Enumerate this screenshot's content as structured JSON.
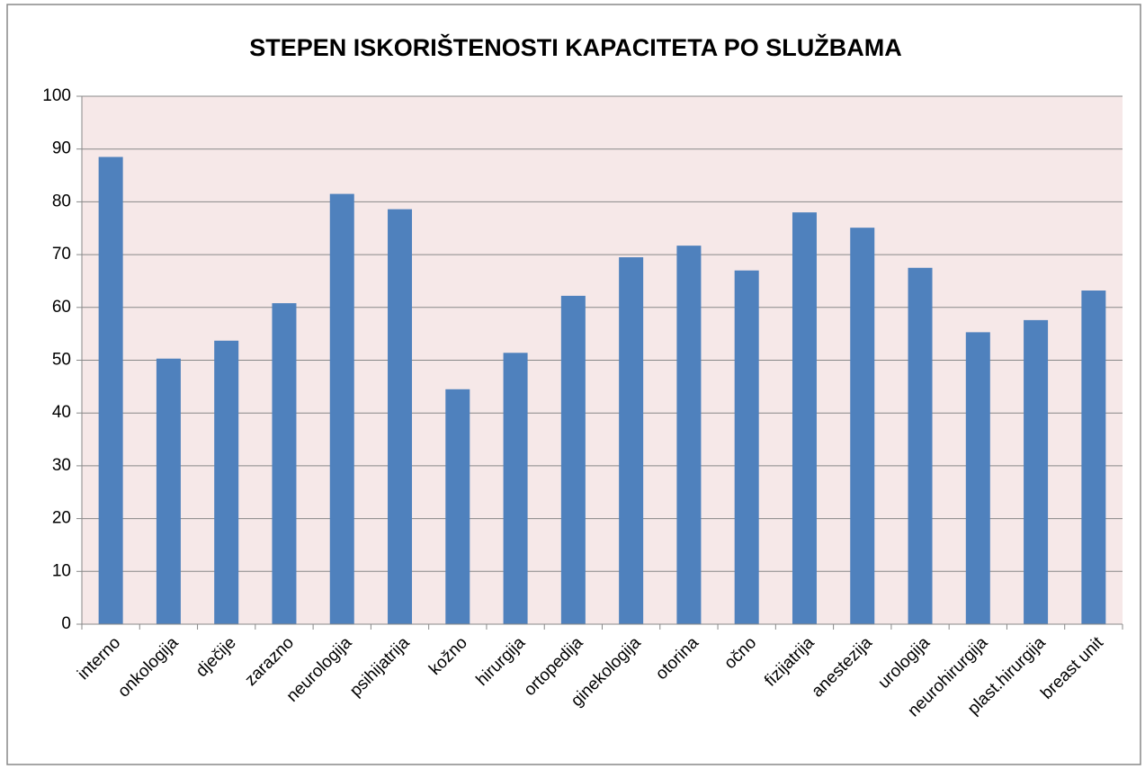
{
  "chart_data": {
    "type": "bar",
    "title": "STEPEN ISKORIŠTENOSTI KAPACITETA PO SLUŽBAMA",
    "categories": [
      "interno",
      "onkologija",
      "dječije",
      "zarazno",
      "neurologija",
      "psihijatrija",
      "kožno",
      "hirurgija",
      "ortopedija",
      "ginekologija",
      "otorina",
      "očno",
      "fizijatrija",
      "anestezija",
      "urologija",
      "neurohirurgija",
      "plast.hirurgija",
      "breast unit"
    ],
    "values": [
      88.5,
      50.3,
      53.7,
      60.8,
      81.5,
      78.6,
      44.5,
      51.4,
      62.2,
      69.5,
      71.7,
      67,
      78,
      75.1,
      67.5,
      55.3,
      57.6,
      63.2
    ],
    "color": "#4f81bd",
    "ylim": [
      0,
      100
    ],
    "yticks": [
      0,
      10,
      20,
      30,
      40,
      50,
      60,
      70,
      80,
      90,
      100
    ],
    "grid": true
  }
}
